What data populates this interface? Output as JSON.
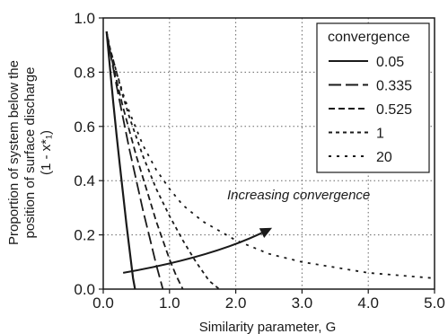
{
  "chart_data": {
    "type": "line",
    "xlabel": "Similarity parameter, G",
    "ylabel_lines": [
      "Proportion of system below the",
      "position of surface discharge",
      "(1 - x*₁)"
    ],
    "xlim": [
      0,
      5
    ],
    "ylim": [
      0,
      1
    ],
    "x_ticks": [
      "0.0",
      "1.0",
      "2.0",
      "3.0",
      "4.0",
      "5.0"
    ],
    "y_ticks": [
      "0.0",
      "0.2",
      "0.4",
      "0.6",
      "0.8",
      "1.0"
    ],
    "grid": "dotted",
    "legend": {
      "title": "convergence",
      "placement": "top-right"
    },
    "annotation": {
      "text": "Increasing convergence"
    },
    "series": [
      {
        "name": "0.05",
        "dash": "solid",
        "x": [
          0.05,
          0.1,
          0.15,
          0.2,
          0.25,
          0.3,
          0.35,
          0.4,
          0.45,
          0.48
        ],
        "y": [
          0.95,
          0.82,
          0.69,
          0.57,
          0.46,
          0.35,
          0.24,
          0.14,
          0.04,
          0.0
        ]
      },
      {
        "name": "0.335",
        "dash": "longdash",
        "x": [
          0.05,
          0.1,
          0.2,
          0.3,
          0.4,
          0.5,
          0.6,
          0.7,
          0.8,
          0.9
        ],
        "y": [
          0.95,
          0.88,
          0.75,
          0.63,
          0.51,
          0.4,
          0.29,
          0.19,
          0.09,
          0.0
        ]
      },
      {
        "name": "0.525",
        "dash": "dash",
        "x": [
          0.05,
          0.1,
          0.2,
          0.3,
          0.4,
          0.5,
          0.6,
          0.7,
          0.8,
          0.9,
          1.0,
          1.1,
          1.2
        ],
        "y": [
          0.95,
          0.88,
          0.77,
          0.67,
          0.58,
          0.49,
          0.41,
          0.33,
          0.25,
          0.18,
          0.11,
          0.05,
          0.0
        ]
      },
      {
        "name": "1",
        "dash": "shortdash",
        "x": [
          0.05,
          0.1,
          0.2,
          0.3,
          0.4,
          0.5,
          0.6,
          0.7,
          0.8,
          1.0,
          1.2,
          1.4,
          1.6,
          1.75
        ],
        "y": [
          0.95,
          0.89,
          0.8,
          0.71,
          0.63,
          0.56,
          0.49,
          0.43,
          0.37,
          0.27,
          0.18,
          0.1,
          0.03,
          0.0
        ]
      },
      {
        "name": "20",
        "dash": "sparse",
        "x": [
          0.05,
          0.1,
          0.2,
          0.3,
          0.4,
          0.5,
          0.6,
          0.8,
          1.0,
          1.2,
          1.5,
          2.0,
          2.5,
          3.0,
          3.5,
          4.0,
          4.5,
          5.0
        ],
        "y": [
          0.95,
          0.89,
          0.8,
          0.72,
          0.65,
          0.59,
          0.53,
          0.44,
          0.37,
          0.31,
          0.25,
          0.18,
          0.13,
          0.1,
          0.08,
          0.06,
          0.05,
          0.04
        ]
      }
    ]
  }
}
